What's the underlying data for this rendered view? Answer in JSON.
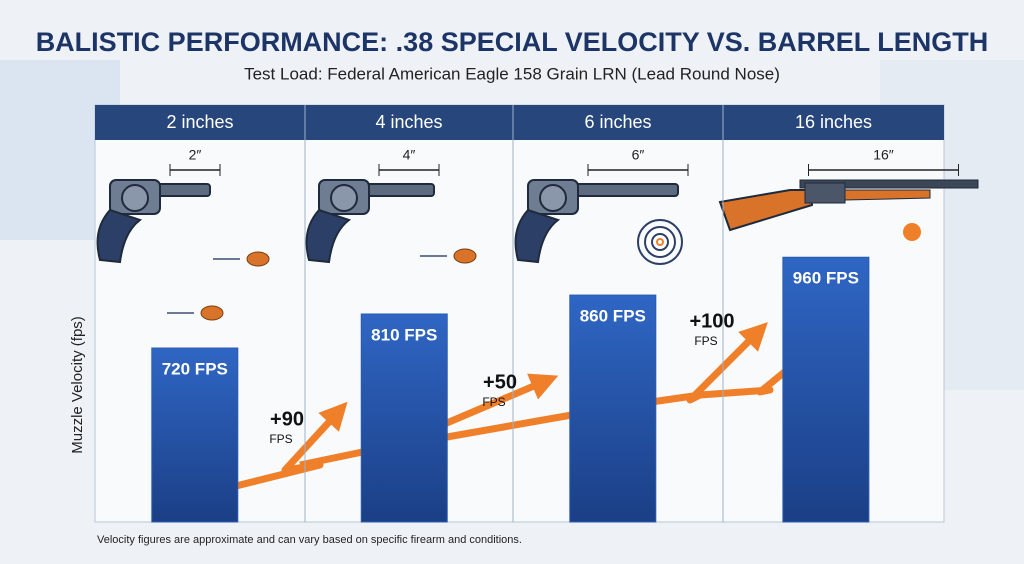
{
  "chart_data": {
    "type": "bar",
    "title": "BALISTIC PERFORMANCE: .38 SPECIAL VELOCITY VS. BARREL LENGTH",
    "subtitle": "Test Load: Federal American Eagle 158 Grain LRN (Lead Round Nose)",
    "y_label": "Muzzle Velocity (fps)",
    "categories": [
      "2 inches",
      "4 inches",
      "6 inches",
      "16 inches"
    ],
    "barrel_labels": [
      "2″",
      "4″",
      "6″",
      "16″"
    ],
    "values": [
      720,
      810,
      860,
      960
    ],
    "value_labels": [
      "720 FPS",
      "810 FPS",
      "860 FPS",
      "960 FPS"
    ],
    "increase_labels": [
      {
        "value": "+90",
        "unit": "FPS"
      },
      {
        "value": "+50",
        "unit": "FPS"
      },
      {
        "value": "+100",
        "unit": "FPS"
      }
    ],
    "color": "#2a5db0",
    "ylim": [
      260,
      1270
    ],
    "footnote": "Velocity figures are approximate and can vary based on specific firearm and conditions."
  }
}
